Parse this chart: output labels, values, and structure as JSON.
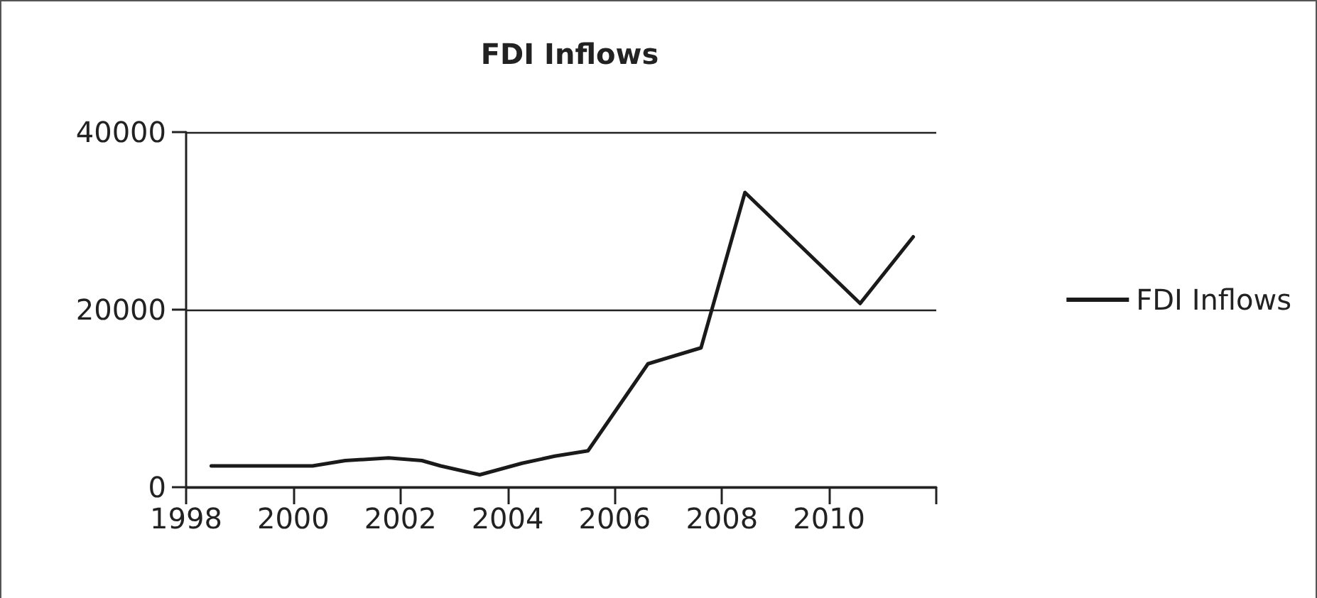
{
  "chart_data": {
    "type": "line",
    "title": "FDI Inflows",
    "x": [
      1998.47,
      2000.36,
      2000.97,
      2001.78,
      2002.4,
      2002.75,
      2003.48,
      2004.27,
      2004.88,
      2005.5,
      2006.62,
      2007.61,
      2008.43,
      2010.58,
      2011.57
    ],
    "series": [
      {
        "name": "FDI Inflows",
        "color": "#1a1a1a",
        "values": [
          2400,
          2400,
          3000,
          3300,
          3000,
          2400,
          1400,
          2700,
          3500,
          4100,
          13900,
          15700,
          33200,
          20700,
          28200
        ]
      }
    ],
    "xlim": [
      1998,
      2012
    ],
    "xticks": [
      1998,
      2000,
      2002,
      2004,
      2006,
      2008,
      2010,
      {
        "value": 2012,
        "label": null
      }
    ],
    "ylim": [
      0,
      40000
    ],
    "yticks": [
      0,
      20000,
      40000
    ],
    "grid": "y",
    "legend": "right",
    "marker": "none",
    "line_style": "solid"
  }
}
